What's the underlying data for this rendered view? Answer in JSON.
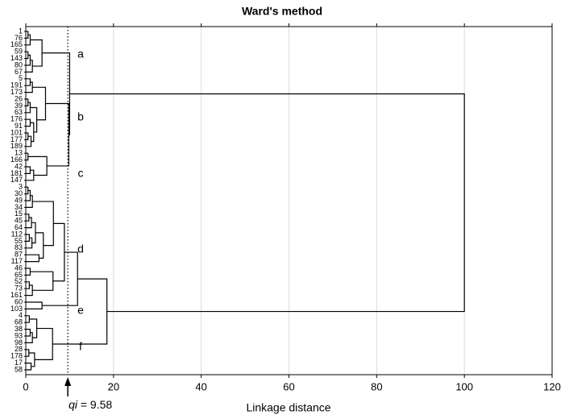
{
  "chart_data": {
    "type": "dendrogram",
    "title": "Ward's method",
    "x_label": "Linkage distance",
    "leaves": [
      "1",
      "76",
      "165",
      "59",
      "143",
      "80",
      "67",
      "5",
      "191",
      "173",
      "26",
      "39",
      "63",
      "176",
      "91",
      "101",
      "177",
      "189",
      "13",
      "166",
      "42",
      "181",
      "147",
      "3",
      "30",
      "49",
      "34",
      "15",
      "45",
      "64",
      "112",
      "55",
      "83",
      "87",
      "117",
      "46",
      "65",
      "52",
      "73",
      "161",
      "60",
      "103",
      "4",
      "68",
      "38",
      "93",
      "98",
      "28",
      "178",
      "17",
      "58"
    ],
    "merges": [
      [
        0,
        1,
        0.5
      ],
      [
        51,
        2,
        1.0
      ],
      [
        3,
        4,
        0.5
      ],
      [
        53,
        5,
        1.0
      ],
      [
        54,
        6,
        1.5
      ],
      [
        52,
        55,
        3.7
      ],
      [
        7,
        8,
        1.0
      ],
      [
        57,
        9,
        1.5
      ],
      [
        10,
        11,
        0.5
      ],
      [
        59,
        12,
        1.0
      ],
      [
        13,
        14,
        1.0
      ],
      [
        15,
        16,
        0.5
      ],
      [
        62,
        17,
        1.2
      ],
      [
        61,
        63,
        1.8
      ],
      [
        60,
        64,
        2.5
      ],
      [
        58,
        65,
        4.5
      ],
      [
        18,
        19,
        0.5
      ],
      [
        20,
        21,
        1.0
      ],
      [
        68,
        22,
        1.8
      ],
      [
        67,
        69,
        4.8
      ],
      [
        66,
        70,
        9.8
      ],
      [
        56,
        71,
        10.0
      ],
      [
        23,
        24,
        0.5
      ],
      [
        73,
        25,
        1.0
      ],
      [
        74,
        26,
        1.5
      ],
      [
        27,
        28,
        0.7
      ],
      [
        76,
        29,
        1.3
      ],
      [
        30,
        31,
        0.8
      ],
      [
        78,
        32,
        1.4
      ],
      [
        77,
        79,
        2.2
      ],
      [
        33,
        34,
        3.0
      ],
      [
        80,
        81,
        4.0
      ],
      [
        75,
        82,
        6.3
      ],
      [
        35,
        36,
        1.0
      ],
      [
        37,
        38,
        0.8
      ],
      [
        85,
        39,
        1.5
      ],
      [
        84,
        86,
        6.2
      ],
      [
        83,
        87,
        8.8
      ],
      [
        40,
        41,
        3.7
      ],
      [
        88,
        89,
        11.8
      ],
      [
        42,
        43,
        0.8
      ],
      [
        44,
        45,
        1.0
      ],
      [
        92,
        46,
        1.5
      ],
      [
        91,
        93,
        2.5
      ],
      [
        47,
        48,
        0.7
      ],
      [
        49,
        50,
        1.2
      ],
      [
        95,
        96,
        2.0
      ],
      [
        94,
        97,
        6.1
      ],
      [
        90,
        98,
        18.5
      ],
      [
        72,
        99,
        100
      ]
    ],
    "cluster_labels": [
      "a",
      "b",
      "c",
      "d",
      "e",
      "f"
    ],
    "threshold": {
      "value": 9.58,
      "label": "qi = 9.58"
    },
    "xlim": [
      0,
      120
    ],
    "xticks": [
      0,
      20,
      40,
      60,
      80,
      100,
      120
    ],
    "grid": true,
    "color": "#000000"
  }
}
